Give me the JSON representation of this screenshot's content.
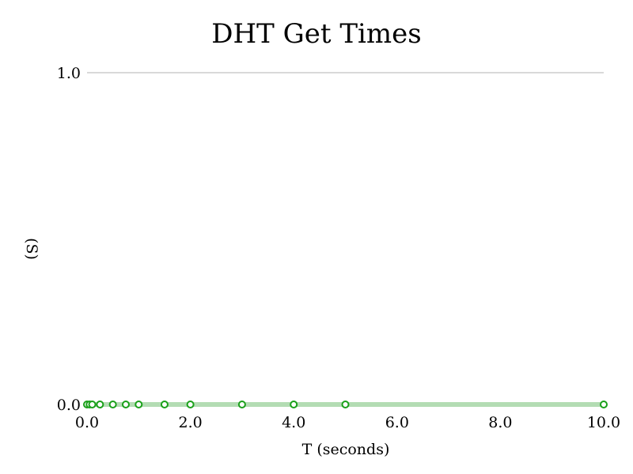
{
  "chart_data": {
    "type": "line",
    "title": "DHT Get Times",
    "xlabel": "T (seconds)",
    "ylabel": "(S)",
    "xlim": [
      0.0,
      10.0
    ],
    "ylim": [
      0.0,
      1.0
    ],
    "xticks": [
      "0.0",
      "2.0",
      "4.0",
      "6.0",
      "8.0",
      "10.0"
    ],
    "yticks": [
      "0.0",
      "1.0"
    ],
    "grid": "horizontal",
    "series": [
      {
        "color": "#1aa01a",
        "line_color": "#b3dcb3",
        "x": [
          0.0,
          0.05,
          0.1,
          0.25,
          0.5,
          0.75,
          1.0,
          1.5,
          2.0,
          3.0,
          4.0,
          5.0,
          10.0
        ],
        "y": [
          0.0,
          0.0,
          0.0,
          0.0,
          0.0,
          0.0,
          0.0,
          0.0,
          0.0,
          0.0,
          0.0,
          0.0,
          0.0
        ]
      }
    ]
  }
}
